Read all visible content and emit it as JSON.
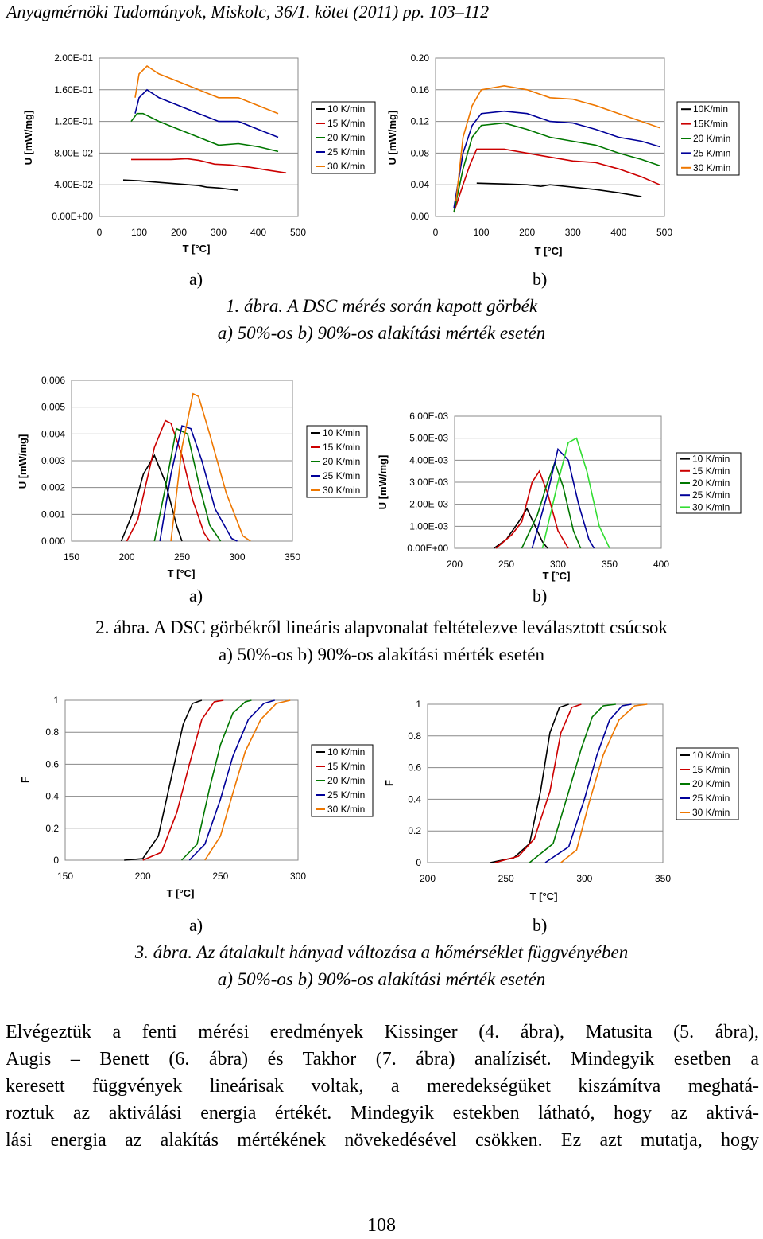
{
  "header": "Anyagmérnöki Tudományok, Miskolc, 36/1. kötet (2011) pp. 103–112",
  "colors": {
    "10": "#000000",
    "15": "#cc0000",
    "20": "#007700",
    "25": "#000099",
    "30": "#ee7700",
    "30_green": "#33dd33",
    "grid": "#888888"
  },
  "figure1": {
    "caption_line1": "1. ábra. A DSC mérés során kapott görbék",
    "caption_line2": "a) 50%-os b) 90%-os alakítási mérték esetén",
    "sub_a": "a)",
    "sub_b": "b)"
  },
  "figure2": {
    "caption_line1": "2. ábra. A DSC görbékről lineáris alapvonalat feltételezve leválasztott csúcsok",
    "caption_line2": "a) 50%-os b) 90%-os alakítási mérték esetén",
    "sub_a": "a)",
    "sub_b": "b)"
  },
  "figure3": {
    "caption_line1": "3. ábra. Az átalakult hányad változása a hőmérséklet függvényében",
    "caption_line2": "a) 50%-os b) 90%-os alakítási mérték esetén",
    "sub_a": "a)",
    "sub_b": "b)"
  },
  "body_lines": [
    "Elvégeztük a fenti mérési eredmények Kissinger (4. ábra), Matusita (5. ábra),",
    "Augis – Benett (6. ábra) és Takhor (7. ábra) analízisét. Mindegyik esetben a",
    "keresett függvények lineárisak voltak, a meredekségüket kiszámítva meghatá-",
    "roztuk az aktiválási energia értékét. Mindegyik estekben látható, hogy az aktivá-",
    "lási energia az alakítás mértékének növekedésével csökken. Ez azt mutatja, hogy"
  ],
  "page_number": "108",
  "chart_data": [
    {
      "id": "1a",
      "type": "line",
      "xlabel": "T [°C]",
      "ylabel": "U [mW/mg]",
      "xlim": [
        0,
        500
      ],
      "ylim": [
        0,
        0.2
      ],
      "xticks": [
        "0",
        "100",
        "200",
        "300",
        "400",
        "500"
      ],
      "yticks": [
        "0.00E+00",
        "4.00E-02",
        "8.00E-02",
        "1.20E-01",
        "1.60E-01",
        "2.00E-01"
      ],
      "grid": true,
      "legend_position": "right",
      "series": [
        {
          "name": "10 K/min",
          "key": "10",
          "x": [
            60,
            100,
            150,
            200,
            250,
            270,
            300,
            350
          ],
          "y": [
            0.046,
            0.045,
            0.043,
            0.041,
            0.039,
            0.037,
            0.036,
            0.033
          ]
        },
        {
          "name": "15 K/min",
          "key": "15",
          "x": [
            80,
            120,
            180,
            220,
            250,
            290,
            330,
            380,
            430,
            470
          ],
          "y": [
            0.072,
            0.072,
            0.072,
            0.073,
            0.071,
            0.066,
            0.065,
            0.062,
            0.058,
            0.055
          ]
        },
        {
          "name": "20 K/min",
          "key": "20",
          "x": [
            80,
            95,
            110,
            150,
            200,
            250,
            300,
            350,
            400,
            450
          ],
          "y": [
            0.12,
            0.13,
            0.13,
            0.12,
            0.11,
            0.1,
            0.09,
            0.092,
            0.088,
            0.082
          ]
        },
        {
          "name": "25 K/min",
          "key": "25",
          "x": [
            90,
            100,
            120,
            150,
            200,
            250,
            300,
            350,
            400,
            450
          ],
          "y": [
            0.13,
            0.15,
            0.16,
            0.15,
            0.14,
            0.13,
            0.12,
            0.12,
            0.11,
            0.1
          ]
        },
        {
          "name": "30 K/min",
          "key": "30",
          "x": [
            90,
            100,
            120,
            150,
            200,
            250,
            300,
            350,
            400,
            450
          ],
          "y": [
            0.15,
            0.18,
            0.19,
            0.18,
            0.17,
            0.16,
            0.15,
            0.15,
            0.14,
            0.13
          ]
        }
      ]
    },
    {
      "id": "1b",
      "type": "line",
      "xlabel": "T [°C]",
      "ylabel": "U [mW/mg]",
      "xlim": [
        0,
        500
      ],
      "ylim": [
        0,
        0.2
      ],
      "xticks": [
        "0",
        "100",
        "200",
        "300",
        "400",
        "500"
      ],
      "yticks": [
        "0.00",
        "0.04",
        "0.08",
        "0.12",
        "0.16",
        "0.20"
      ],
      "grid": true,
      "legend_position": "right",
      "series": [
        {
          "name": "10K/min",
          "key": "10",
          "x": [
            90,
            150,
            200,
            230,
            250,
            300,
            350,
            400,
            450
          ],
          "y": [
            0.042,
            0.041,
            0.04,
            0.038,
            0.04,
            0.037,
            0.034,
            0.03,
            0.025
          ]
        },
        {
          "name": "15K/min",
          "key": "15",
          "x": [
            40,
            60,
            75,
            90,
            150,
            200,
            250,
            300,
            350,
            400,
            450,
            490
          ],
          "y": [
            0.005,
            0.04,
            0.065,
            0.085,
            0.085,
            0.08,
            0.075,
            0.07,
            0.068,
            0.06,
            0.05,
            0.04
          ]
        },
        {
          "name": "20 K/min",
          "key": "20",
          "x": [
            40,
            60,
            80,
            100,
            150,
            200,
            250,
            300,
            350,
            400,
            450,
            490
          ],
          "y": [
            0.005,
            0.06,
            0.1,
            0.115,
            0.118,
            0.11,
            0.1,
            0.095,
            0.09,
            0.08,
            0.072,
            0.064
          ]
        },
        {
          "name": "25 K/min",
          "key": "25",
          "x": [
            40,
            60,
            80,
            100,
            150,
            200,
            250,
            300,
            350,
            400,
            450,
            490
          ],
          "y": [
            0.01,
            0.08,
            0.115,
            0.13,
            0.133,
            0.13,
            0.12,
            0.118,
            0.11,
            0.1,
            0.095,
            0.088
          ]
        },
        {
          "name": "30 K/min",
          "key": "30",
          "x": [
            45,
            60,
            80,
            100,
            150,
            200,
            250,
            300,
            350,
            400,
            450,
            490
          ],
          "y": [
            0.02,
            0.1,
            0.14,
            0.16,
            0.165,
            0.16,
            0.15,
            0.148,
            0.14,
            0.13,
            0.12,
            0.112
          ]
        }
      ]
    },
    {
      "id": "2a",
      "type": "line",
      "xlabel": "T [°C]",
      "ylabel": "U [mW/mg]",
      "xlim": [
        150,
        350
      ],
      "ylim": [
        0,
        0.006
      ],
      "xticks": [
        "150",
        "200",
        "250",
        "300",
        "350"
      ],
      "yticks": [
        "0.000",
        "0.001",
        "0.002",
        "0.003",
        "0.004",
        "0.005",
        "0.006"
      ],
      "grid": true,
      "legend_position": "right",
      "series": [
        {
          "name": "10 K/min",
          "key": "10",
          "x": [
            195,
            205,
            215,
            225,
            235,
            245,
            250
          ],
          "y": [
            0,
            0.001,
            0.0025,
            0.0032,
            0.0022,
            0.0006,
            0
          ]
        },
        {
          "name": "15 K/min",
          "key": "15",
          "x": [
            200,
            210,
            225,
            235,
            240,
            250,
            260,
            270,
            275
          ],
          "y": [
            0,
            0.0008,
            0.0035,
            0.0045,
            0.0044,
            0.0032,
            0.0015,
            0.0003,
            0
          ]
        },
        {
          "name": "20 K/min",
          "key": "20",
          "x": [
            225,
            235,
            245,
            255,
            265,
            275,
            285
          ],
          "y": [
            0,
            0.002,
            0.0042,
            0.004,
            0.0022,
            0.0006,
            0
          ]
        },
        {
          "name": "25 K/min",
          "key": "25",
          "x": [
            230,
            240,
            250,
            258,
            268,
            280,
            295,
            300
          ],
          "y": [
            0,
            0.0025,
            0.0043,
            0.0042,
            0.003,
            0.0012,
            0.0001,
            0
          ]
        },
        {
          "name": "30 K/min",
          "key": "30",
          "x": [
            240,
            250,
            260,
            265,
            275,
            290,
            305,
            312
          ],
          "y": [
            0,
            0.0035,
            0.0055,
            0.0054,
            0.004,
            0.0018,
            0.0002,
            0
          ]
        }
      ]
    },
    {
      "id": "2b",
      "type": "line",
      "xlabel": "T [°C]",
      "ylabel": "U [mW/mg]",
      "xlim": [
        200,
        400
      ],
      "ylim": [
        0,
        0.006
      ],
      "xticks": [
        "200",
        "250",
        "300",
        "350",
        "400"
      ],
      "yticks": [
        "0.00E+00",
        "1.00E-03",
        "2.00E-03",
        "3.00E-03",
        "4.00E-03",
        "5.00E-03",
        "6.00E-03"
      ],
      "grid": true,
      "legend_position": "right",
      "series": [
        {
          "name": "10 K/min",
          "key": "10",
          "x": [
            238,
            250,
            262,
            270,
            278,
            285,
            290
          ],
          "y": [
            0,
            0.0004,
            0.0012,
            0.0018,
            0.001,
            0.0003,
            0
          ]
        },
        {
          "name": "15 K/min",
          "key": "15",
          "x": [
            240,
            255,
            265,
            275,
            282,
            290,
            300,
            310
          ],
          "y": [
            0,
            0.0006,
            0.0012,
            0.003,
            0.0035,
            0.0025,
            0.0008,
            0
          ]
        },
        {
          "name": "20 K/min",
          "key": "20",
          "x": [
            265,
            280,
            290,
            297,
            305,
            315,
            322
          ],
          "y": [
            0,
            0.0015,
            0.003,
            0.0039,
            0.0028,
            0.0008,
            0
          ]
        },
        {
          "name": "25 K/min",
          "key": "25",
          "x": [
            275,
            290,
            300,
            310,
            320,
            330,
            335
          ],
          "y": [
            0,
            0.0025,
            0.0045,
            0.004,
            0.002,
            0.0004,
            0
          ]
        },
        {
          "name": "30 K/min",
          "key": "30_green",
          "x": [
            285,
            300,
            310,
            318,
            328,
            340,
            350
          ],
          "y": [
            0,
            0.003,
            0.0048,
            0.005,
            0.0035,
            0.001,
            0
          ]
        }
      ]
    },
    {
      "id": "3a",
      "type": "line",
      "xlabel": "T [°C]",
      "ylabel": "F",
      "xlim": [
        150,
        300
      ],
      "ylim": [
        0,
        1
      ],
      "xticks": [
        "150",
        "200",
        "250",
        "300"
      ],
      "yticks": [
        "0",
        "0.2",
        "0.4",
        "0.6",
        "0.8",
        "1"
      ],
      "grid": true,
      "legend_position": "right",
      "series": [
        {
          "name": "10 K/min",
          "key": "10",
          "x": [
            188,
            200,
            210,
            218,
            226,
            232,
            238
          ],
          "y": [
            0,
            0.01,
            0.15,
            0.5,
            0.85,
            0.98,
            1
          ]
        },
        {
          "name": "15 K/min",
          "key": "15",
          "x": [
            200,
            212,
            222,
            230,
            238,
            246,
            252
          ],
          "y": [
            0,
            0.05,
            0.3,
            0.6,
            0.88,
            0.99,
            1
          ]
        },
        {
          "name": "20 K/min",
          "key": "20",
          "x": [
            225,
            235,
            243,
            250,
            258,
            266,
            270
          ],
          "y": [
            0,
            0.1,
            0.45,
            0.72,
            0.92,
            0.99,
            1
          ]
        },
        {
          "name": "25 K/min",
          "key": "25",
          "x": [
            230,
            240,
            250,
            258,
            268,
            278,
            285
          ],
          "y": [
            0,
            0.1,
            0.38,
            0.65,
            0.88,
            0.98,
            1
          ]
        },
        {
          "name": "30 K/min",
          "key": "30",
          "x": [
            240,
            250,
            258,
            266,
            276,
            286,
            295
          ],
          "y": [
            0,
            0.15,
            0.42,
            0.68,
            0.88,
            0.98,
            1
          ]
        }
      ]
    },
    {
      "id": "3b",
      "type": "line",
      "xlabel": "T [°C]",
      "ylabel": "F",
      "xlim": [
        200,
        350
      ],
      "ylim": [
        0,
        1
      ],
      "xticks": [
        "200",
        "250",
        "300",
        "350"
      ],
      "yticks": [
        "0",
        "0.2",
        "0.4",
        "0.6",
        "0.8",
        "1"
      ],
      "grid": true,
      "legend_position": "right",
      "series": [
        {
          "name": "10 K/min",
          "key": "10",
          "x": [
            240,
            255,
            265,
            272,
            278,
            284,
            290
          ],
          "y": [
            0,
            0.03,
            0.12,
            0.45,
            0.82,
            0.98,
            1
          ]
        },
        {
          "name": "15 K/min",
          "key": "15",
          "x": [
            243,
            258,
            268,
            278,
            285,
            292,
            298
          ],
          "y": [
            0,
            0.04,
            0.15,
            0.45,
            0.82,
            0.98,
            1
          ]
        },
        {
          "name": "20 K/min",
          "key": "20",
          "x": [
            265,
            280,
            290,
            298,
            305,
            312,
            320
          ],
          "y": [
            0,
            0.12,
            0.45,
            0.72,
            0.92,
            0.99,
            1
          ]
        },
        {
          "name": "25 K/min",
          "key": "25",
          "x": [
            275,
            290,
            300,
            308,
            316,
            324,
            330
          ],
          "y": [
            0,
            0.1,
            0.4,
            0.68,
            0.9,
            0.99,
            1
          ]
        },
        {
          "name": "30 K/min",
          "key": "30",
          "x": [
            285,
            295,
            303,
            312,
            322,
            332,
            340
          ],
          "y": [
            0,
            0.08,
            0.38,
            0.68,
            0.9,
            0.99,
            1
          ]
        }
      ]
    }
  ]
}
